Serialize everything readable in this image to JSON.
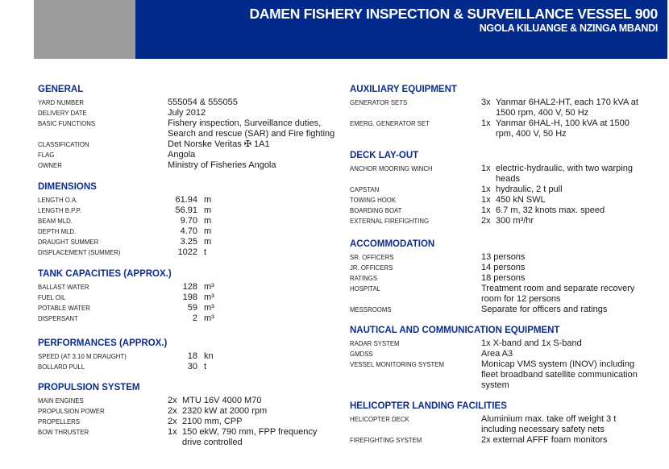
{
  "header": {
    "title": "DAMEN FISHERY INSPECTION & SURVEILLANCE VESSEL 900",
    "subtitle": "NGOLA KILUANGE & NZINGA MBANDI",
    "colors": {
      "banner": "#022a8c",
      "gray": "#9b9b9b",
      "heading": "#0d2d8a"
    }
  },
  "general": {
    "title": "GENERAL",
    "rows": [
      {
        "label": "Yard number",
        "value": "555054 & 555055"
      },
      {
        "label": "Delivery date",
        "value": "July 2012"
      },
      {
        "label": "Basic functions",
        "value": "Fishery inspection, Surveillance duties, Search and rescue (SAR) and Fire fighting"
      },
      {
        "label": "Classification",
        "value": "Det Norske Veritas ✠ 1A1"
      },
      {
        "label": "Flag",
        "value": "Angola"
      },
      {
        "label": "Owner",
        "value": "Ministry of Fisheries Angola"
      }
    ]
  },
  "dimensions": {
    "title": "DIMENSIONS",
    "rows": [
      {
        "label": "Length O.A.",
        "value": "61.94",
        "unit": "m"
      },
      {
        "label": "Length B.P.P.",
        "value": "56.91",
        "unit": "m"
      },
      {
        "label": "Beam mld.",
        "value": "9.70",
        "unit": "m"
      },
      {
        "label": "Depth mld.",
        "value": "4.70",
        "unit": "m"
      },
      {
        "label": "Draught summer",
        "value": "3.25",
        "unit": "m"
      },
      {
        "label": "Displacement (summer)",
        "value": "1022",
        "unit": "t"
      }
    ]
  },
  "tanks": {
    "title": "TANK CAPACITIES (APPROX.)",
    "rows": [
      {
        "label": "Ballast water",
        "value": "128",
        "unit": "m³"
      },
      {
        "label": "Fuel oil",
        "value": "198",
        "unit": "m³"
      },
      {
        "label": "Potable water",
        "value": "59",
        "unit": "m³"
      },
      {
        "label": "Dispersant",
        "value": "2",
        "unit": "m³"
      }
    ]
  },
  "performances": {
    "title": "PERFORMANCES (APPROX.)",
    "rows": [
      {
        "label": "Speed (at 3.10 m draught)",
        "value": "18",
        "unit": "kn"
      },
      {
        "label": "Bollard pull",
        "value": "30",
        "unit": "t"
      }
    ]
  },
  "propulsion": {
    "title": "PROPULSION SYSTEM",
    "rows": [
      {
        "label": "Main engines",
        "qty": "2x",
        "value": "MTU 16V 4000 M70"
      },
      {
        "label": "Propulsion power",
        "qty": "2x",
        "value": "2320 kW at 2000 rpm"
      },
      {
        "label": "Propellers",
        "qty": "2x",
        "value": "2100 mm, CPP"
      },
      {
        "label": "Bow thruster",
        "qty": "1x",
        "value": "150 ekW, 790 mm, FPP frequency drive controlled"
      }
    ]
  },
  "auxiliary": {
    "title": "AUXILIARY EQUIPMENT",
    "rows": [
      {
        "label": "Generator sets",
        "qty": "3x",
        "value": "Yanmar 6HAL2-HT, each 170 kVA at 1500 rpm, 400 V, 50 Hz"
      },
      {
        "label": "Emerg. generator set",
        "qty": "1x",
        "value": "Yanmar 6HAL-H, 100 kVA at 1500 rpm, 400 V, 50 Hz"
      }
    ]
  },
  "deck": {
    "title": "DECK LAY-OUT",
    "rows": [
      {
        "label": "Anchor mooring winch",
        "qty": "1x",
        "value": "electric-hydraulic, with two warping heads"
      },
      {
        "label": "Capstan",
        "qty": "1x",
        "value": "hydraulic, 2 t pull"
      },
      {
        "label": "Towing hook",
        "qty": "1x",
        "value": "450 kN SWL"
      },
      {
        "label": "Boarding boat",
        "qty": "1x",
        "value": "6.7 m, 32 knots max. speed"
      },
      {
        "label": "External firefighting",
        "qty": "2x",
        "value": "300 m³/hr"
      }
    ]
  },
  "accommodation": {
    "title": "ACCOMMODATION",
    "rows": [
      {
        "label": "Sr. officers",
        "value": "13 persons"
      },
      {
        "label": "Jr. officers",
        "value": "14 persons"
      },
      {
        "label": "Ratings",
        "value": "18 persons"
      },
      {
        "label": "Hospital",
        "value": "Treatment room and separate recovery room for 12 persons"
      },
      {
        "label": "Messrooms",
        "value": "Separate for officers and ratings"
      }
    ]
  },
  "nautical": {
    "title": "NAUTICAL AND COMMUNICATION EQUIPMENT",
    "rows": [
      {
        "label": "Radar system",
        "value": "1x X-band and 1x S-band"
      },
      {
        "label": "GMDSS",
        "value": "Area A3"
      },
      {
        "label": "Vessel monitoring system",
        "value": "Monicap VMS system (INOV) including fleet broadband satellite communication system"
      }
    ]
  },
  "helicopter": {
    "title": "HELICOPTER LANDING FACILITIES",
    "rows": [
      {
        "label": "Helicopter deck",
        "value": "Aluminium max. take off weight 3 t including necessary safety nets"
      },
      {
        "label": "Firefighting system",
        "value": "2x external AFFF foam monitors"
      }
    ]
  }
}
